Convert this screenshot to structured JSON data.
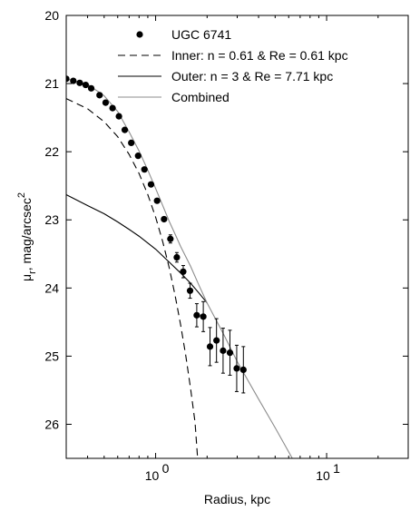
{
  "chart_data": {
    "type": "line",
    "xlabel": "Radius, kpc",
    "ylabel": "μ",
    "ylabel_sub": "r",
    "ylabel_rest": ", mag/arcsec",
    "ylabel_sup": "2",
    "xscale": "log",
    "xlim": [
      0.3,
      30
    ],
    "ylim": [
      20,
      26.5
    ],
    "y_inverted": true,
    "x_ticks": [
      {
        "value": 1,
        "base": "10",
        "exp": "0"
      },
      {
        "value": 10,
        "base": "10",
        "exp": "1"
      }
    ],
    "y_ticks": [
      20,
      21,
      22,
      23,
      24,
      25,
      26
    ],
    "grid": false,
    "legend_position": "top-right",
    "series": [
      {
        "name": "UGC 6741",
        "style": "points-errorbars",
        "color": "#000000",
        "x": [
          0.3,
          0.33,
          0.36,
          0.39,
          0.42,
          0.47,
          0.51,
          0.56,
          0.61,
          0.66,
          0.72,
          0.79,
          0.86,
          0.94,
          1.02,
          1.12,
          1.22,
          1.33,
          1.45,
          1.59,
          1.74,
          1.9,
          2.08,
          2.27,
          2.48,
          2.72,
          2.98,
          3.26
        ],
        "y": [
          20.93,
          20.96,
          20.99,
          21.02,
          21.07,
          21.17,
          21.28,
          21.36,
          21.48,
          21.68,
          21.87,
          22.06,
          22.26,
          22.48,
          22.72,
          22.99,
          23.28,
          23.55,
          23.76,
          24.04,
          24.4,
          24.42,
          24.86,
          24.77,
          24.92,
          24.95,
          25.18,
          25.2
        ],
        "yerr": [
          0,
          0,
          0,
          0,
          0,
          0,
          0,
          0,
          0,
          0,
          0,
          0,
          0,
          0,
          0,
          0,
          0.06,
          0.07,
          0.09,
          0.11,
          0.17,
          0.22,
          0.28,
          0.32,
          0.33,
          0.33,
          0.34,
          0.34
        ]
      },
      {
        "name": "Inner: n = 0.61 & Re = 0.61 kpc",
        "style": "dashed",
        "color": "#000000",
        "x": [
          0.3,
          0.4,
          0.5,
          0.6,
          0.7,
          0.8,
          0.9,
          1.0,
          1.1,
          1.2,
          1.3,
          1.4,
          1.5,
          1.6,
          1.7,
          1.76
        ],
        "y": [
          21.22,
          21.37,
          21.56,
          21.78,
          22.04,
          22.32,
          22.63,
          22.96,
          23.32,
          23.7,
          24.11,
          24.54,
          24.99,
          25.47,
          25.97,
          26.5
        ]
      },
      {
        "name": "Outer: n = 3 & Re = 7.71 kpc",
        "style": "solid",
        "color": "#000000",
        "x": [
          0.3,
          0.4,
          0.5,
          0.6,
          0.7,
          0.8,
          1.0,
          1.2,
          1.4,
          1.6,
          1.8,
          2.0
        ],
        "y": [
          22.63,
          22.79,
          22.91,
          23.03,
          23.14,
          23.24,
          23.43,
          23.62,
          23.78,
          23.93,
          24.08,
          24.22
        ]
      },
      {
        "name": "Combined",
        "style": "solid",
        "color": "#8c8c8c",
        "x": [
          0.3,
          0.4,
          0.5,
          0.6,
          0.7,
          0.8,
          0.9,
          1.0,
          1.1,
          1.2,
          1.3,
          1.4,
          1.6,
          1.8,
          2.0,
          2.5,
          3.0,
          4.0,
          5.0,
          6.3
        ],
        "y": [
          20.93,
          21.01,
          21.18,
          21.41,
          21.71,
          21.99,
          22.27,
          22.54,
          22.79,
          23.02,
          23.21,
          23.39,
          23.68,
          23.97,
          24.22,
          24.68,
          25.08,
          25.63,
          26.05,
          26.5
        ]
      }
    ]
  }
}
